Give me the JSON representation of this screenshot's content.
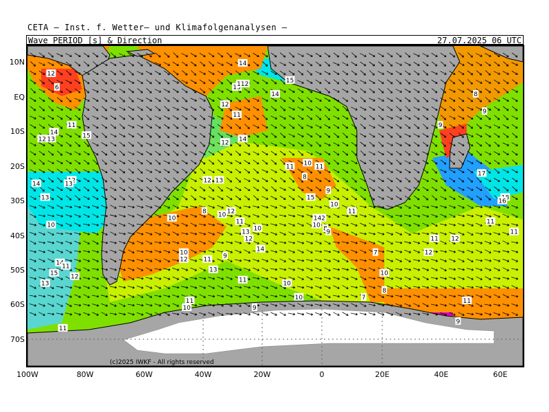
{
  "header": {
    "institute": "CETA – Inst. f. Wetter– und Klimafolgenanalysen –",
    "product": "Wave_PERIOD [s] & Direction",
    "datetime": "27.07.2025 06 UTC"
  },
  "axes": {
    "lat_labels": [
      "10N",
      "EQ",
      "10S",
      "20S",
      "30S",
      "40S",
      "50S",
      "60S",
      "70S"
    ],
    "lon_labels": [
      "100W",
      "80W",
      "60W",
      "40W",
      "20W",
      "0",
      "20E",
      "40E",
      "60E"
    ]
  },
  "copyright": "(c)2025 IWKF - All rights reserved",
  "colors": {
    "land": "#a6a6a6",
    "ice": "#ffffff",
    "period_high": "#22a0ff",
    "period_14": "#00e6e6",
    "period_12": "#52e08a",
    "period_10": "#8fe800",
    "period_9": "#c8f000",
    "period_8": "#ff9000",
    "period_6": "#ff4020",
    "period_low": "#e000c0"
  },
  "period_labels": [
    {
      "v": "12",
      "lon": -92,
      "lat": 7
    },
    {
      "v": "6",
      "lon": -90,
      "lat": 3
    },
    {
      "v": "11",
      "lon": -85,
      "lat": -8
    },
    {
      "v": "14",
      "lon": -91,
      "lat": -10
    },
    {
      "v": "12",
      "lon": -95,
      "lat": -12
    },
    {
      "v": "13",
      "lon": -92,
      "lat": -12
    },
    {
      "v": "15",
      "lon": -80,
      "lat": -11
    },
    {
      "v": "14",
      "lon": -27,
      "lat": 10
    },
    {
      "v": "13",
      "lon": -29,
      "lat": 3
    },
    {
      "v": "112",
      "lon": -27,
      "lat": 4
    },
    {
      "v": "14",
      "lon": -16,
      "lat": 1
    },
    {
      "v": "15",
      "lon": -11,
      "lat": 5
    },
    {
      "v": "12",
      "lon": -33,
      "lat": -2
    },
    {
      "v": "11",
      "lon": -29,
      "lat": -5
    },
    {
      "v": "12",
      "lon": -33,
      "lat": -13
    },
    {
      "v": "14",
      "lon": -27,
      "lat": -12
    },
    {
      "v": "14",
      "lon": -97,
      "lat": -25
    },
    {
      "v": "12",
      "lon": -85,
      "lat": -24
    },
    {
      "v": "13",
      "lon": -86,
      "lat": -25
    },
    {
      "v": "12",
      "lon": -39,
      "lat": -24
    },
    {
      "v": "13",
      "lon": -35,
      "lat": -24
    },
    {
      "v": "13",
      "lon": -94,
      "lat": -29
    },
    {
      "v": "10",
      "lon": -92,
      "lat": -37
    },
    {
      "v": "10",
      "lon": -51,
      "lat": -35
    },
    {
      "v": "8",
      "lon": -40,
      "lat": -33
    },
    {
      "v": "10",
      "lon": -34,
      "lat": -34
    },
    {
      "v": "12",
      "lon": -31,
      "lat": -33
    },
    {
      "v": "11",
      "lon": -28,
      "lat": -36
    },
    {
      "v": "10",
      "lon": -22,
      "lat": -38
    },
    {
      "v": "13",
      "lon": -26,
      "lat": -39
    },
    {
      "v": "12",
      "lon": -25,
      "lat": -41
    },
    {
      "v": "14",
      "lon": -21,
      "lat": -44
    },
    {
      "v": "10",
      "lon": -47,
      "lat": -45
    },
    {
      "v": "12",
      "lon": -47,
      "lat": -47
    },
    {
      "v": "11",
      "lon": -39,
      "lat": -47
    },
    {
      "v": "9",
      "lon": -33,
      "lat": -46
    },
    {
      "v": "13",
      "lon": -37,
      "lat": -50
    },
    {
      "v": "11",
      "lon": -27,
      "lat": -53
    },
    {
      "v": "14",
      "lon": -89,
      "lat": -48
    },
    {
      "v": "11",
      "lon": -87,
      "lat": -49
    },
    {
      "v": "15",
      "lon": -91,
      "lat": -51
    },
    {
      "v": "12",
      "lon": -84,
      "lat": -52
    },
    {
      "v": "13",
      "lon": -94,
      "lat": -54
    },
    {
      "v": "10",
      "lon": -12,
      "lat": -54
    },
    {
      "v": "10",
      "lon": -8,
      "lat": -58
    },
    {
      "v": "11",
      "lon": -45,
      "lat": -59
    },
    {
      "v": "10",
      "lon": -46,
      "lat": -61
    },
    {
      "v": "9",
      "lon": -23,
      "lat": -61
    },
    {
      "v": "11",
      "lon": -88,
      "lat": -67
    },
    {
      "v": "11",
      "lon": -11,
      "lat": -20
    },
    {
      "v": "8",
      "lon": -6,
      "lat": -23
    },
    {
      "v": "10",
      "lon": -5,
      "lat": -19
    },
    {
      "v": "11",
      "lon": -1,
      "lat": -20
    },
    {
      "v": "9",
      "lon": 2,
      "lat": -27
    },
    {
      "v": "15",
      "lon": -4,
      "lat": -29
    },
    {
      "v": "10",
      "lon": 4,
      "lat": -31
    },
    {
      "v": "11",
      "lon": 10,
      "lat": -33
    },
    {
      "v": "142",
      "lon": -1,
      "lat": -35
    },
    {
      "v": "10",
      "lon": -2,
      "lat": -37
    },
    {
      "v": "8",
      "lon": 1,
      "lat": -38
    },
    {
      "v": "9",
      "lon": 2,
      "lat": -39
    },
    {
      "v": "7",
      "lon": 18,
      "lat": -45
    },
    {
      "v": "10",
      "lon": 21,
      "lat": -51
    },
    {
      "v": "8",
      "lon": 21,
      "lat": -56
    },
    {
      "v": "7",
      "lon": 14,
      "lat": -58
    },
    {
      "v": "8",
      "lon": 52,
      "lat": 1
    },
    {
      "v": "9",
      "lon": 55,
      "lat": -4
    },
    {
      "v": "9",
      "lon": 40,
      "lat": -8
    },
    {
      "v": "17",
      "lon": 54,
      "lat": -22
    },
    {
      "v": "18",
      "lon": 62,
      "lat": -29
    },
    {
      "v": "16",
      "lon": 61,
      "lat": -30
    },
    {
      "v": "11",
      "lon": 57,
      "lat": -36
    },
    {
      "v": "11",
      "lon": 65,
      "lat": -39
    },
    {
      "v": "11",
      "lon": 38,
      "lat": -41
    },
    {
      "v": "12",
      "lon": 45,
      "lat": -41
    },
    {
      "v": "12",
      "lon": 36,
      "lat": -45
    },
    {
      "v": "11",
      "lon": 49,
      "lat": -59
    },
    {
      "v": "9",
      "lon": 46,
      "lat": -65
    }
  ]
}
